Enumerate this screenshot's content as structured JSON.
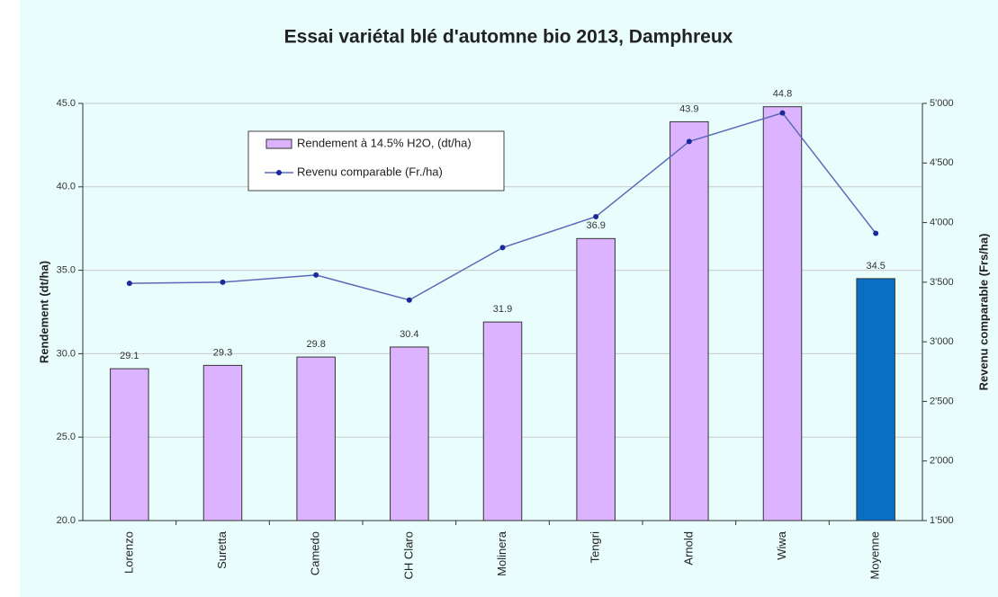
{
  "chart_data": {
    "type": "bar_line",
    "title": "Essai variétal blé d'automne bio 2013, Damphreux",
    "y_label": "Rendement (dt/ha)",
    "y2_label": "Revenu comparable (Frs/ha)",
    "categories": [
      "Lorenzo",
      "Suretta",
      "Camedo",
      "CH Claro",
      "Molinera",
      "Tengri",
      "Arnold",
      "Wiwa",
      "Moyenne"
    ],
    "series": [
      {
        "name": "Rendement à 14.5% H2O, (dt/ha)",
        "type": "bar",
        "color": "#dcb3ff",
        "colors": [
          "#dcb3ff",
          "#dcb3ff",
          "#dcb3ff",
          "#dcb3ff",
          "#dcb3ff",
          "#dcb3ff",
          "#dcb3ff",
          "#dcb3ff",
          "#0a6fc2"
        ],
        "values": [
          29.1,
          29.3,
          29.8,
          30.4,
          31.9,
          36.9,
          43.9,
          44.8,
          34.5
        ]
      },
      {
        "name": "Revenu comparable (Fr./ha)",
        "type": "line",
        "axis": "y2",
        "color": "#1a2a9a",
        "values": [
          3490,
          3500,
          3560,
          3350,
          3790,
          4050,
          4680,
          4920,
          3910
        ]
      }
    ],
    "ylim": [
      20,
      45
    ],
    "yticks": [
      {
        "value": 20,
        "label": "20.0"
      },
      {
        "value": 25,
        "label": "25.0"
      },
      {
        "value": 30,
        "label": "30.0"
      },
      {
        "value": 35,
        "label": "35.0"
      },
      {
        "value": 40,
        "label": "40.0"
      },
      {
        "value": 45,
        "label": "45.0"
      }
    ],
    "y2lim": [
      1500,
      5000
    ],
    "y2ticks": [
      {
        "value": 1500,
        "label": "1'500"
      },
      {
        "value": 2000,
        "label": "2'000"
      },
      {
        "value": 2500,
        "label": "2'500"
      },
      {
        "value": 3000,
        "label": "3'000"
      },
      {
        "value": 3500,
        "label": "3'500"
      },
      {
        "value": 4000,
        "label": "4'000"
      },
      {
        "value": 4500,
        "label": "4'500"
      },
      {
        "value": 5000,
        "label": "5'000"
      }
    ],
    "grid": true
  }
}
